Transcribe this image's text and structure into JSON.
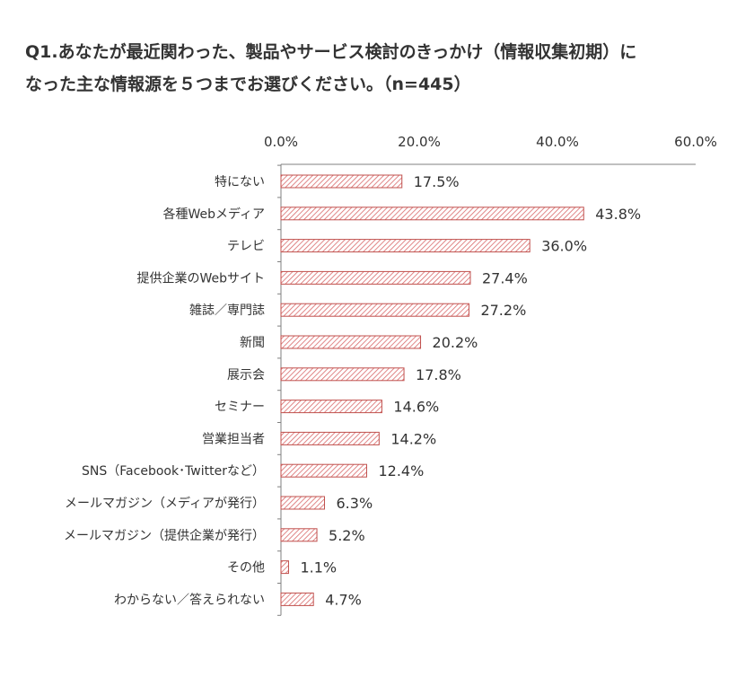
{
  "title": "Q1.あなたが最近関わった、製品やサービス検討のきっかけ（情報収集初期）に\nなった主な情報源を５つまでお選びください。（n=445）",
  "chart_data": {
    "type": "bar",
    "orientation": "horizontal",
    "title": "Q1.あなたが最近関わった、製品やサービス検討のきっかけ（情報収集初期）に\nなった主な情報源を５つまでお選びください。（n=445）",
    "xlim": [
      0,
      60
    ],
    "xticks": [
      0,
      20,
      40,
      60
    ],
    "xtick_labels": [
      "0.0%",
      "20.0%",
      "40.0%",
      "60.0%"
    ],
    "axis_position": "top",
    "grid": false,
    "legend": "none",
    "categories": [
      "特にない",
      "各種Webメディア",
      "テレビ",
      "提供企業のWebサイト",
      "雑誌／専門誌",
      "新聞",
      "展示会",
      "セミナー",
      "営業担当者",
      "SNS（Facebook･Twitterなど）",
      "メールマガジン（メディアが発行）",
      "メールマガジン（提供企業が発行）",
      "その他",
      "わからない／答えられない"
    ],
    "values": [
      17.5,
      43.8,
      36.0,
      27.4,
      27.2,
      20.2,
      17.8,
      14.6,
      14.2,
      12.4,
      6.3,
      5.2,
      1.1,
      4.7
    ],
    "value_labels": [
      "17.5%",
      "43.8%",
      "36.0%",
      "27.4%",
      "27.2%",
      "20.2%",
      "17.8%",
      "14.6%",
      "14.2%",
      "12.4%",
      "6.3%",
      "5.2%",
      "1.1%",
      "4.7%"
    ],
    "colors": {
      "bar_stroke": "#c0504d",
      "bar_hatch": "#d9696a",
      "axis": "#808080",
      "text": "#333333"
    }
  }
}
